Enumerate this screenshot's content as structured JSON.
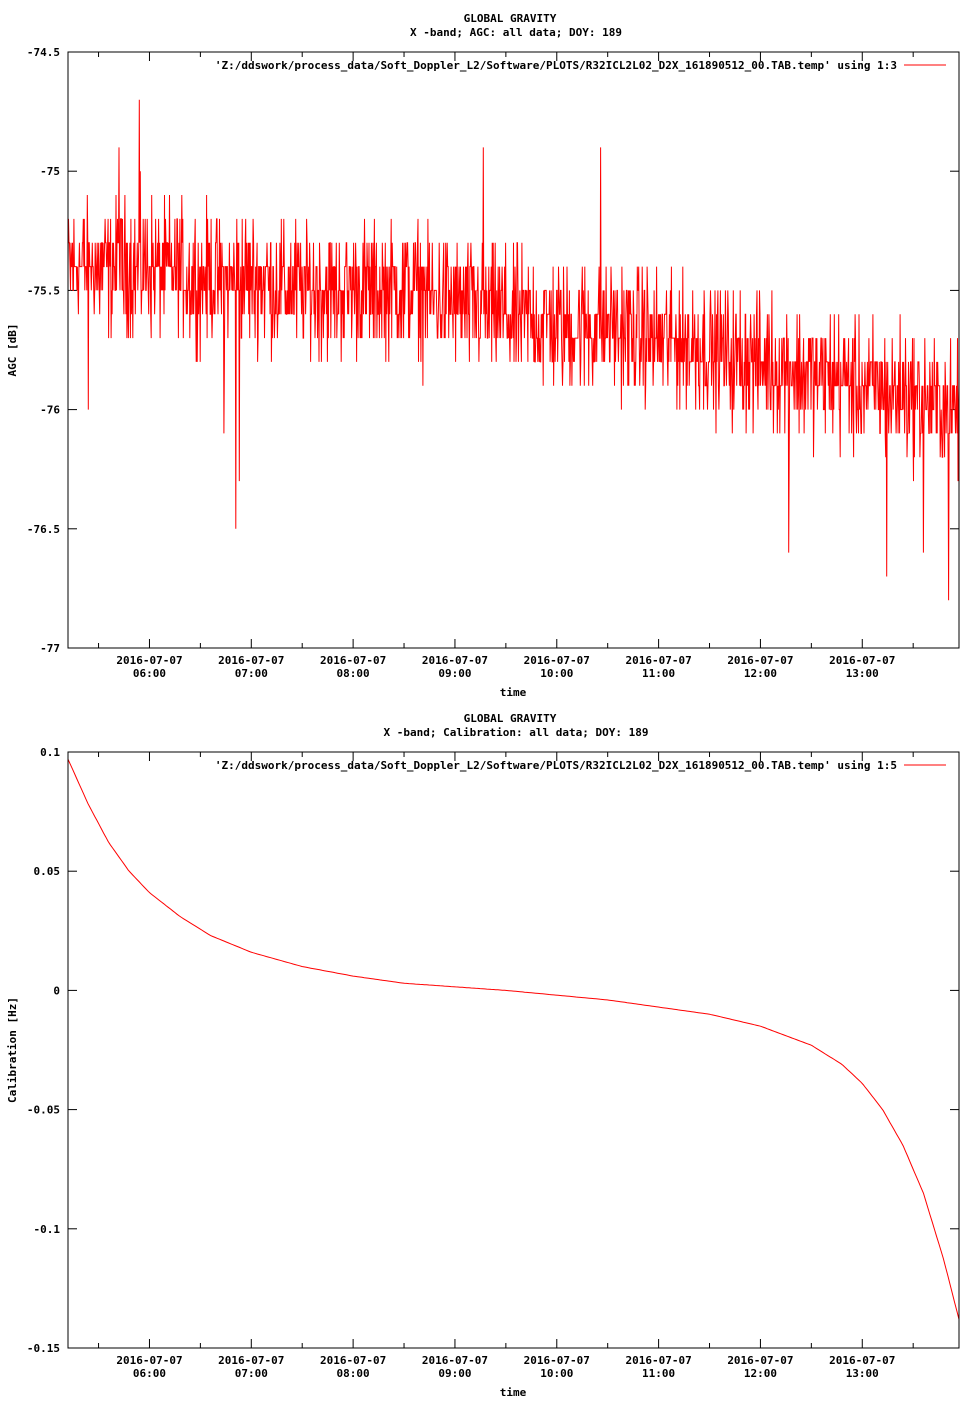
{
  "chart_data": [
    {
      "type": "line",
      "title": "GLOBAL GRAVITY",
      "subtitle": "X -band; AGC: all data; DOY: 189",
      "xlabel": "time",
      "ylabel": "AGC [dB]",
      "ylim": [
        -77,
        -74.5
      ],
      "y_ticks": [
        -74.5,
        -75,
        -75.5,
        -76,
        -76.5,
        -77
      ],
      "y_tick_labels": [
        "-74.5",
        "-75",
        "-75.5",
        "-76",
        "-76.5",
        "-77"
      ],
      "xlim_hours": [
        5.2,
        13.95
      ],
      "x_ticks_hours": [
        6,
        7,
        8,
        9,
        10,
        11,
        12,
        13
      ],
      "x_tick_dates": [
        "2016-07-07",
        "2016-07-07",
        "2016-07-07",
        "2016-07-07",
        "2016-07-07",
        "2016-07-07",
        "2016-07-07",
        "2016-07-07"
      ],
      "x_tick_times": [
        "06:00",
        "07:00",
        "08:00",
        "09:00",
        "10:00",
        "11:00",
        "12:00",
        "13:00"
      ],
      "grid": false,
      "legend_position": "top-right",
      "series": [
        {
          "name": "'Z:/ddswork/process_data/Soft_Doppler_L2/Software/PLOTS/R32ICL2L02_D2X_161890512_00.TAB.temp' using 1:3",
          "color": "#ff0000",
          "x": [
            5.2,
            5.5,
            6.0,
            6.5,
            7.0,
            7.5,
            8.0,
            8.5,
            9.0,
            9.5,
            10.0,
            10.5,
            11.0,
            11.5,
            12.0,
            12.5,
            13.0,
            13.5,
            13.95
          ],
          "y": [
            -75.4,
            -75.4,
            -75.4,
            -75.45,
            -75.45,
            -75.5,
            -75.5,
            -75.5,
            -75.55,
            -75.6,
            -75.65,
            -75.65,
            -75.7,
            -75.75,
            -75.8,
            -75.85,
            -75.9,
            -75.95,
            -76.0
          ],
          "noise_amplitude": 0.4,
          "spikes": [
            {
              "x": 5.9,
              "y": -74.7
            },
            {
              "x": 6.85,
              "y": -76.5
            },
            {
              "x": 6.88,
              "y": -76.3
            },
            {
              "x": 6.73,
              "y": -76.1
            },
            {
              "x": 5.4,
              "y": -76.0
            },
            {
              "x": 12.28,
              "y": -76.6
            },
            {
              "x": 13.24,
              "y": -76.7
            },
            {
              "x": 13.85,
              "y": -76.8
            },
            {
              "x": 13.6,
              "y": -76.6
            },
            {
              "x": 9.28,
              "y": -74.9
            },
            {
              "x": 10.43,
              "y": -74.9
            },
            {
              "x": 5.7,
              "y": -74.9
            }
          ]
        }
      ]
    },
    {
      "type": "line",
      "title": "GLOBAL GRAVITY",
      "subtitle": "X -band; Calibration: all data; DOY: 189",
      "xlabel": "time",
      "ylabel": "Calibration [Hz]",
      "ylim": [
        -0.15,
        0.1
      ],
      "y_ticks": [
        0.1,
        0.05,
        0,
        -0.05,
        -0.1,
        -0.15
      ],
      "y_tick_labels": [
        "0.1",
        "0.05",
        "0",
        "-0.05",
        "-0.1",
        "-0.15"
      ],
      "xlim_hours": [
        5.2,
        13.95
      ],
      "x_ticks_hours": [
        6,
        7,
        8,
        9,
        10,
        11,
        12,
        13
      ],
      "x_tick_dates": [
        "2016-07-07",
        "2016-07-07",
        "2016-07-07",
        "2016-07-07",
        "2016-07-07",
        "2016-07-07",
        "2016-07-07",
        "2016-07-07"
      ],
      "x_tick_times": [
        "06:00",
        "07:00",
        "08:00",
        "09:00",
        "10:00",
        "11:00",
        "12:00",
        "13:00"
      ],
      "grid": false,
      "legend_position": "top-right",
      "series": [
        {
          "name": "'Z:/ddswork/process_data/Soft_Doppler_L2/Software/PLOTS/R32ICL2L02_D2X_161890512_00.TAB.temp' using 1:5",
          "color": "#ff0000",
          "x": [
            5.2,
            5.4,
            5.6,
            5.8,
            6.0,
            6.3,
            6.6,
            7.0,
            7.5,
            8.0,
            8.5,
            9.0,
            9.5,
            10.0,
            10.5,
            11.0,
            11.5,
            12.0,
            12.5,
            12.8,
            13.0,
            13.2,
            13.4,
            13.6,
            13.8,
            13.95
          ],
          "y": [
            0.097,
            0.078,
            0.062,
            0.05,
            0.041,
            0.031,
            0.023,
            0.016,
            0.01,
            0.006,
            0.003,
            0.0015,
            0.0,
            -0.002,
            -0.004,
            -0.007,
            -0.01,
            -0.015,
            -0.023,
            -0.031,
            -0.039,
            -0.05,
            -0.065,
            -0.085,
            -0.113,
            -0.138
          ]
        }
      ]
    }
  ]
}
